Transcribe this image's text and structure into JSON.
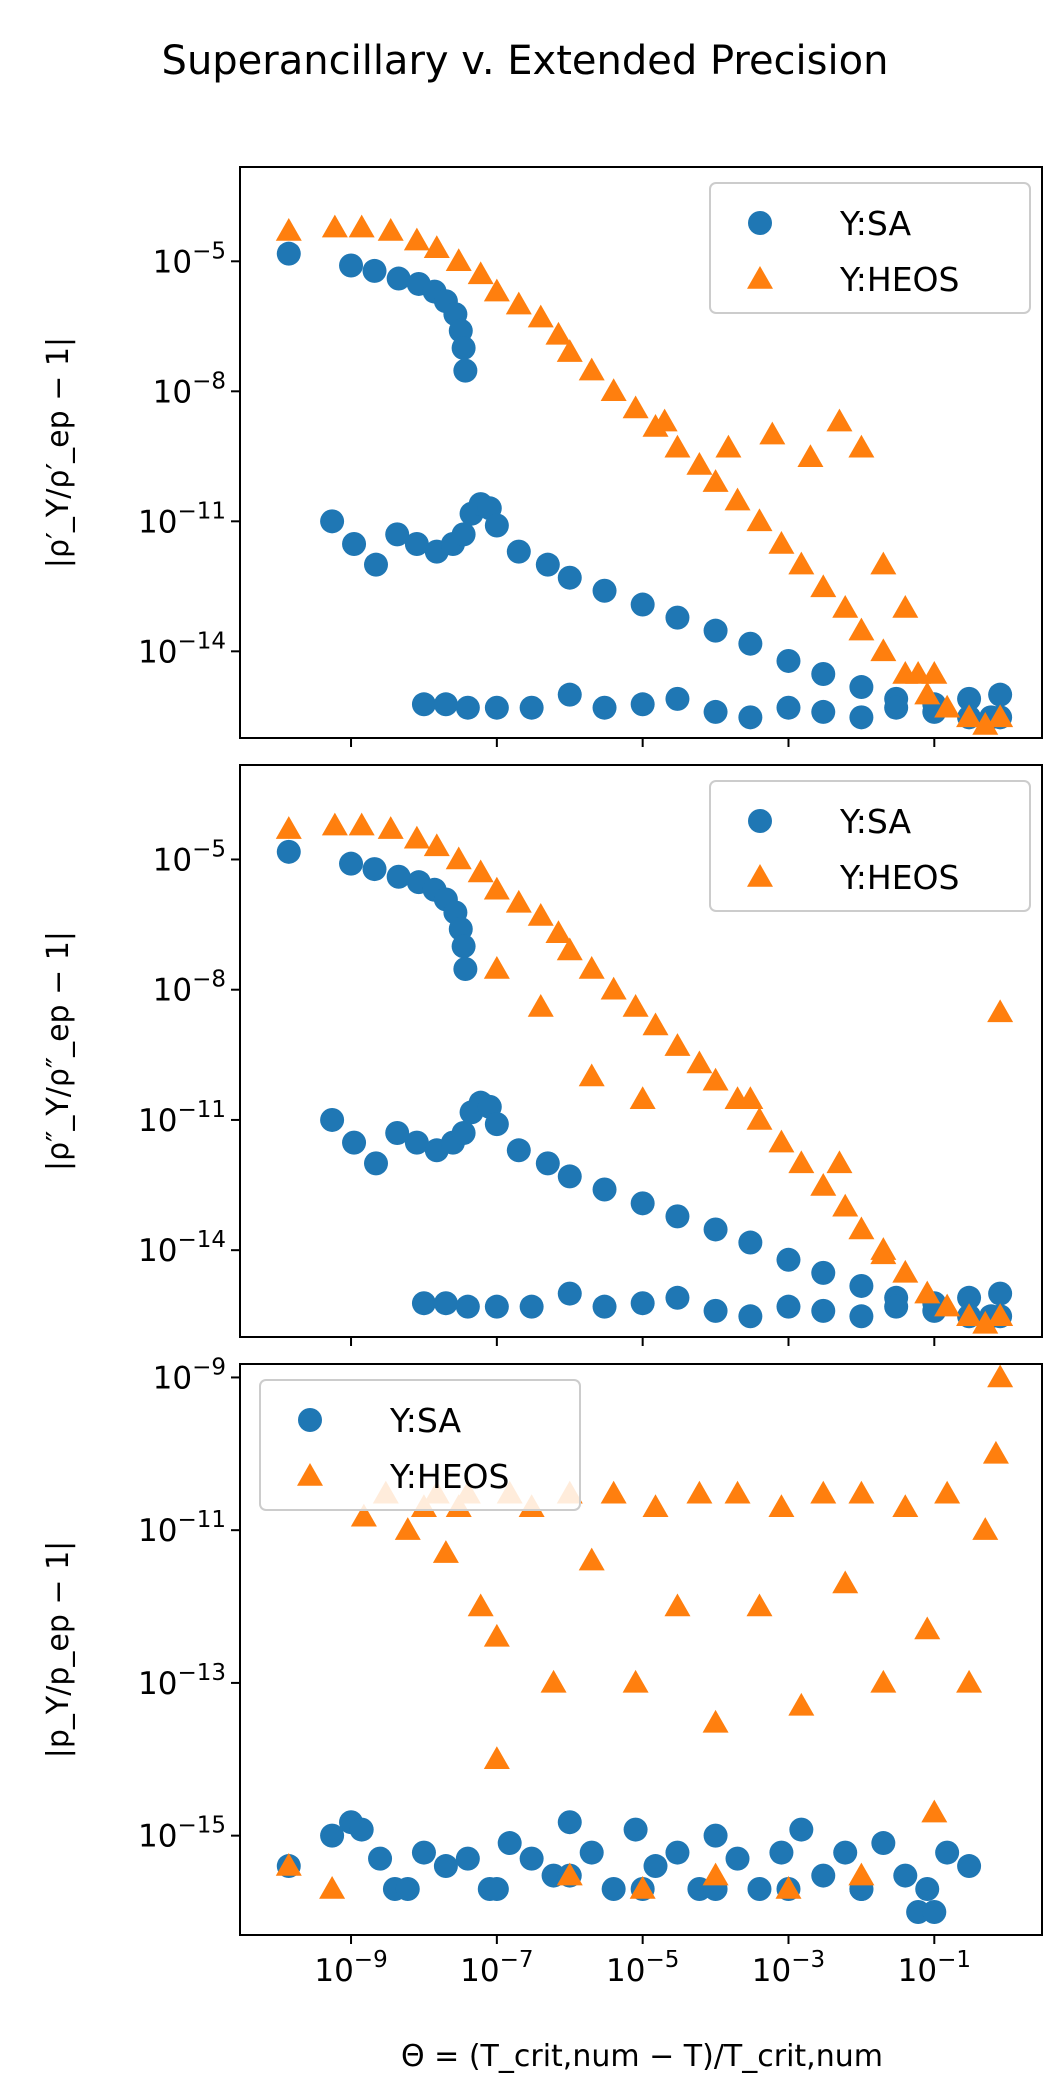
{
  "figure": {
    "title": "Superancillary v. Extended Precision",
    "xlabel": "Θ = (T_crit,num − T)/T_crit,num",
    "colors": {
      "sa": "#1f77b4",
      "heos": "#ff7f0e"
    }
  },
  "chart_data": [
    {
      "type": "scatter",
      "panel": "top",
      "ylabel": "|ρ′_Y/ρ′_ep − 1|",
      "x_scale": "log",
      "y_scale": "log",
      "xlim": [
        3e-11,
        3.0
      ],
      "ylim": [
        1e-16,
        0.0015
      ],
      "xticks": [
        "10^-9",
        "10^-7",
        "10^-5",
        "10^-3",
        "10^-1"
      ],
      "yticks": [
        "10^-5",
        "10^-8",
        "10^-11",
        "10^-14"
      ],
      "x_tick_labels_shown": false,
      "legend": {
        "position": "upper right",
        "entries": [
          "Y:SA",
          "Y:HEOS"
        ]
      },
      "series": [
        {
          "name": "Y:SA",
          "marker": "circle",
          "color": "#1f77b4",
          "x": [
            1.4e-10,
            1e-09,
            2.1e-09,
            4.5e-09,
            8.5e-09,
            1.4e-08,
            2e-08,
            2.7e-08,
            3.2e-08,
            3.5e-08,
            3.7e-08,
            5.5e-10,
            1.1e-09,
            2.2e-09,
            4.3e-09,
            8e-09,
            1.5e-08,
            2.5e-08,
            3.5e-08,
            4.5e-08,
            6e-08,
            8e-08,
            1e-07,
            2e-07,
            5e-07,
            1e-06,
            3e-06,
            1e-05,
            3e-05,
            0.0001,
            0.0003,
            0.001,
            0.003,
            0.01,
            0.03,
            0.1,
            0.3,
            0.8,
            1e-08,
            2e-08,
            4e-08,
            1e-07,
            3e-07,
            1e-06,
            3e-06,
            1e-05,
            3e-05,
            0.0001,
            0.0003,
            0.001,
            0.003,
            0.01,
            0.03,
            0.1,
            0.3,
            0.6,
            0.8
          ],
          "y": [
            1.5e-05,
            8e-06,
            6e-06,
            4e-06,
            3e-06,
            2e-06,
            1.2e-06,
            6e-07,
            2.5e-07,
            1e-07,
            3e-08,
            1e-11,
            3e-12,
            1e-12,
            5e-12,
            3e-12,
            2e-12,
            3e-12,
            5e-12,
            1.5e-11,
            2.5e-11,
            2e-11,
            8e-12,
            2e-12,
            1e-12,
            5e-13,
            2.5e-13,
            1.2e-13,
            6e-14,
            3e-14,
            1.5e-14,
            6e-15,
            3e-15,
            1.5e-15,
            8e-16,
            6e-16,
            8e-16,
            1e-15,
            6e-16,
            6e-16,
            5e-16,
            5e-16,
            5e-16,
            1e-15,
            5e-16,
            6e-16,
            8e-16,
            4e-16,
            3e-16,
            5e-16,
            4e-16,
            3e-16,
            5e-16,
            4e-16,
            3e-16,
            3e-16,
            3e-16
          ]
        },
        {
          "name": "Y:HEOS",
          "marker": "triangle",
          "color": "#ff7f0e",
          "x": [
            1.4e-10,
            6e-10,
            1.4e-09,
            3.5e-09,
            8e-09,
            1.5e-08,
            3e-08,
            6e-08,
            1e-07,
            2e-07,
            4e-07,
            7e-07,
            1e-06,
            2e-06,
            4e-06,
            8e-06,
            1.5e-05,
            3e-05,
            6e-05,
            0.0001,
            0.0002,
            0.0004,
            0.0008,
            0.0015,
            0.003,
            0.006,
            0.01,
            0.02,
            0.04,
            0.08,
            0.15,
            0.3,
            0.5,
            0.8,
            2e-05,
            0.00015,
            0.0006,
            0.002,
            0.005,
            0.01,
            0.02,
            0.04,
            0.06,
            0.1
          ],
          "y": [
            5e-05,
            6e-05,
            6e-05,
            5e-05,
            3e-05,
            2e-05,
            1e-05,
            5e-06,
            2e-06,
            1e-06,
            5e-07,
            2e-07,
            8e-08,
            3e-08,
            1e-08,
            4e-09,
            1.5e-09,
            5e-10,
            2e-10,
            8e-11,
            3e-11,
            1e-11,
            3e-12,
            1e-12,
            3e-13,
            1e-13,
            3e-14,
            1e-14,
            3e-15,
            1e-15,
            5e-16,
            3e-16,
            2e-16,
            3e-16,
            2e-09,
            5e-10,
            1e-09,
            3e-10,
            2e-09,
            5e-10,
            1e-12,
            1e-13,
            3e-15,
            3e-15
          ]
        }
      ]
    },
    {
      "type": "scatter",
      "panel": "middle",
      "ylabel": "|ρ″_Y/ρ″_ep − 1|",
      "x_scale": "log",
      "y_scale": "log",
      "xlim": [
        3e-11,
        3.0
      ],
      "ylim": [
        1e-16,
        0.0015
      ],
      "xticks": [
        "10^-9",
        "10^-7",
        "10^-5",
        "10^-3",
        "10^-1"
      ],
      "yticks": [
        "10^-5",
        "10^-8",
        "10^-11",
        "10^-14"
      ],
      "x_tick_labels_shown": false,
      "legend": {
        "position": "upper right",
        "entries": [
          "Y:SA",
          "Y:HEOS"
        ]
      },
      "series": [
        {
          "name": "Y:SA",
          "marker": "circle",
          "color": "#1f77b4",
          "x": [
            1.4e-10,
            1e-09,
            2.1e-09,
            4.5e-09,
            8.5e-09,
            1.4e-08,
            2e-08,
            2.7e-08,
            3.2e-08,
            3.5e-08,
            3.7e-08,
            5.5e-10,
            1.1e-09,
            2.2e-09,
            4.3e-09,
            8e-09,
            1.5e-08,
            2.5e-08,
            3.5e-08,
            4.5e-08,
            6e-08,
            8e-08,
            1e-07,
            2e-07,
            5e-07,
            1e-06,
            3e-06,
            1e-05,
            3e-05,
            0.0001,
            0.0003,
            0.001,
            0.003,
            0.01,
            0.03,
            0.1,
            0.3,
            0.8,
            1e-08,
            2e-08,
            4e-08,
            1e-07,
            3e-07,
            1e-06,
            3e-06,
            1e-05,
            3e-05,
            0.0001,
            0.0003,
            0.001,
            0.003,
            0.01,
            0.03,
            0.1,
            0.3,
            0.6,
            0.8
          ],
          "y": [
            1.5e-05,
            8e-06,
            6e-06,
            4e-06,
            3e-06,
            2e-06,
            1.2e-06,
            6e-07,
            2.5e-07,
            1e-07,
            3e-08,
            1e-11,
            3e-12,
            1e-12,
            5e-12,
            3e-12,
            2e-12,
            3e-12,
            5e-12,
            1.5e-11,
            2.5e-11,
            2e-11,
            8e-12,
            2e-12,
            1e-12,
            5e-13,
            2.5e-13,
            1.2e-13,
            6e-14,
            3e-14,
            1.5e-14,
            6e-15,
            3e-15,
            1.5e-15,
            8e-16,
            6e-16,
            8e-16,
            1e-15,
            6e-16,
            6e-16,
            5e-16,
            5e-16,
            5e-16,
            1e-15,
            5e-16,
            6e-16,
            8e-16,
            4e-16,
            3e-16,
            5e-16,
            4e-16,
            3e-16,
            5e-16,
            4e-16,
            3e-16,
            3e-16,
            3e-16
          ]
        },
        {
          "name": "Y:HEOS",
          "marker": "triangle",
          "color": "#ff7f0e",
          "x": [
            1.4e-10,
            6e-10,
            1.4e-09,
            3.5e-09,
            8e-09,
            1.5e-08,
            3e-08,
            6e-08,
            1e-07,
            2e-07,
            4e-07,
            7e-07,
            1e-06,
            2e-06,
            4e-06,
            8e-06,
            1.5e-05,
            3e-05,
            6e-05,
            0.0001,
            0.0002,
            0.0004,
            0.0008,
            0.0015,
            0.003,
            0.006,
            0.01,
            0.02,
            0.04,
            0.08,
            0.15,
            0.3,
            0.5,
            0.8,
            0.8,
            1e-07,
            4e-07,
            2e-06,
            1e-05,
            0.0003,
            0.005,
            0.02
          ],
          "y": [
            5e-05,
            6e-05,
            6e-05,
            5e-05,
            3e-05,
            2e-05,
            1e-05,
            5e-06,
            2e-06,
            1e-06,
            5e-07,
            2e-07,
            8e-08,
            3e-08,
            1e-08,
            4e-09,
            1.5e-09,
            5e-10,
            2e-10,
            8e-11,
            3e-11,
            1e-11,
            3e-12,
            1e-12,
            3e-13,
            1e-13,
            3e-14,
            1e-14,
            3e-15,
            1e-15,
            5e-16,
            3e-16,
            2e-16,
            3e-16,
            3e-09,
            3e-08,
            4e-09,
            1e-10,
            3e-11,
            3e-11,
            1e-12,
            8e-15
          ]
        }
      ]
    },
    {
      "type": "scatter",
      "panel": "bottom",
      "ylabel": "|p_Y/p_ep − 1|",
      "x_scale": "log",
      "y_scale": "log",
      "xlim": [
        3e-11,
        3.0
      ],
      "ylim": [
        5e-17,
        1.5e-09
      ],
      "xticks": [
        "10^-9",
        "10^-7",
        "10^-5",
        "10^-3",
        "10^-1"
      ],
      "yticks": [
        "10^-9",
        "10^-11",
        "10^-13",
        "10^-15"
      ],
      "x_tick_labels_shown": true,
      "legend": {
        "position": "upper left",
        "entries": [
          "Y:SA",
          "Y:HEOS"
        ]
      },
      "series": [
        {
          "name": "Y:SA",
          "marker": "circle",
          "color": "#1f77b4",
          "x": [
            1.4e-10,
            5.5e-10,
            1e-09,
            1.4e-09,
            2.5e-09,
            4e-09,
            6e-09,
            1e-08,
            2e-08,
            4e-08,
            8e-08,
            1.5e-07,
            3e-07,
            6e-07,
            1e-06,
            2e-06,
            4e-06,
            8e-06,
            1.5e-05,
            3e-05,
            6e-05,
            0.0001,
            0.0002,
            0.0004,
            0.0008,
            0.0015,
            0.003,
            0.006,
            0.01,
            0.02,
            0.04,
            0.08,
            0.15,
            0.3,
            0.06,
            0.1,
            1e-07,
            1e-06,
            1e-05,
            0.0001,
            0.001,
            0.01
          ],
          "y": [
            4e-16,
            1e-15,
            1.5e-15,
            1.2e-15,
            5e-16,
            2e-16,
            2e-16,
            6e-16,
            4e-16,
            5e-16,
            2e-16,
            8e-16,
            5e-16,
            3e-16,
            1.5e-15,
            6e-16,
            2e-16,
            1.2e-15,
            4e-16,
            6e-16,
            2e-16,
            1e-15,
            5e-16,
            2e-16,
            6e-16,
            1.2e-15,
            3e-16,
            6e-16,
            2e-16,
            8e-16,
            3e-16,
            2e-16,
            6e-16,
            4e-16,
            1e-16,
            1e-16,
            2e-16,
            3e-16,
            2e-16,
            2e-16,
            2e-16,
            2e-16
          ]
        },
        {
          "name": "Y:HEOS",
          "marker": "triangle",
          "color": "#ff7f0e",
          "x": [
            1.4e-10,
            5.5e-10,
            1.5e-09,
            3e-09,
            6e-09,
            1e-08,
            1.5e-08,
            2e-08,
            3e-08,
            4e-08,
            6e-08,
            1e-07,
            1.5e-07,
            3e-07,
            6e-07,
            1e-06,
            2e-06,
            4e-06,
            8e-06,
            1.5e-05,
            3e-05,
            6e-05,
            0.0001,
            0.0002,
            0.0004,
            0.0008,
            0.0015,
            0.003,
            0.006,
            0.01,
            0.02,
            0.04,
            0.08,
            0.15,
            0.3,
            0.5,
            0.7,
            0.8,
            1e-07,
            1e-06,
            1e-05,
            0.0001,
            0.001,
            0.01,
            0.1
          ],
          "y": [
            4e-16,
            2e-16,
            1.5e-11,
            3e-11,
            1e-11,
            2e-11,
            3e-11,
            5e-12,
            2e-11,
            3e-11,
            1e-12,
            4e-13,
            3e-11,
            2e-11,
            1e-13,
            3e-11,
            4e-12,
            3e-11,
            1e-13,
            2e-11,
            1e-12,
            3e-11,
            3e-14,
            3e-11,
            1e-12,
            2e-11,
            5e-14,
            3e-11,
            2e-12,
            3e-11,
            1e-13,
            2e-11,
            5e-13,
            3e-11,
            1e-13,
            1e-11,
            1e-10,
            1e-09,
            1e-14,
            3e-16,
            2e-16,
            3e-16,
            2e-16,
            3e-16,
            2e-15
          ]
        }
      ]
    }
  ]
}
